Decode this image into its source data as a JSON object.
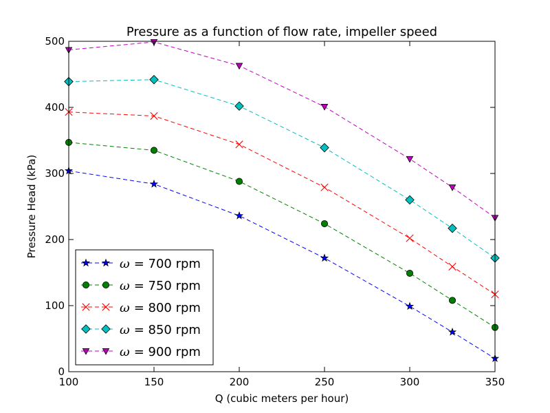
{
  "chart_data": {
    "type": "line",
    "title": "Pressure as a function of flow rate, impeller speed",
    "xlabel": "Q (cubic meters per hour)",
    "ylabel": "Pressure Head (kPa)",
    "xlim": [
      100,
      350
    ],
    "ylim": [
      0,
      500
    ],
    "xticks": [
      100,
      150,
      200,
      250,
      300,
      350
    ],
    "yticks": [
      0,
      100,
      200,
      300,
      400,
      500
    ],
    "xtick_labels": [
      "100",
      "150",
      "200",
      "250",
      "300",
      "350"
    ],
    "ytick_labels": [
      "0",
      "100",
      "200",
      "300",
      "400",
      "500"
    ],
    "grid": false,
    "legend_position": "lower-left",
    "x": [
      100,
      150,
      200,
      250,
      300,
      325,
      350
    ],
    "series": [
      {
        "name": "ω = 700 rpm",
        "name_prefix": "ω",
        "name_suffix": "= 700 rpm",
        "color": "#0000ff",
        "marker": "star",
        "values": [
          304,
          284,
          236,
          172,
          99,
          60,
          20
        ]
      },
      {
        "name": "ω = 750 rpm",
        "name_prefix": "ω",
        "name_suffix": "= 750 rpm",
        "color": "#008000",
        "marker": "circle",
        "values": [
          347,
          335,
          288,
          224,
          149,
          108,
          67
        ]
      },
      {
        "name": "ω = 800 rpm",
        "name_prefix": "ω",
        "name_suffix": "= 800 rpm",
        "color": "#ff0000",
        "marker": "x",
        "values": [
          393,
          387,
          344,
          279,
          202,
          159,
          117
        ]
      },
      {
        "name": "ω = 850 rpm",
        "name_prefix": "ω",
        "name_suffix": "= 850 rpm",
        "color": "#00bfbf",
        "marker": "diamond",
        "values": [
          439,
          442,
          402,
          339,
          260,
          217,
          172
        ]
      },
      {
        "name": "ω = 900 rpm",
        "name_prefix": "ω",
        "name_suffix": "= 900 rpm",
        "color": "#bf00bf",
        "marker": "triangle-down",
        "values": [
          487,
          499,
          463,
          401,
          322,
          279,
          233
        ]
      }
    ]
  }
}
